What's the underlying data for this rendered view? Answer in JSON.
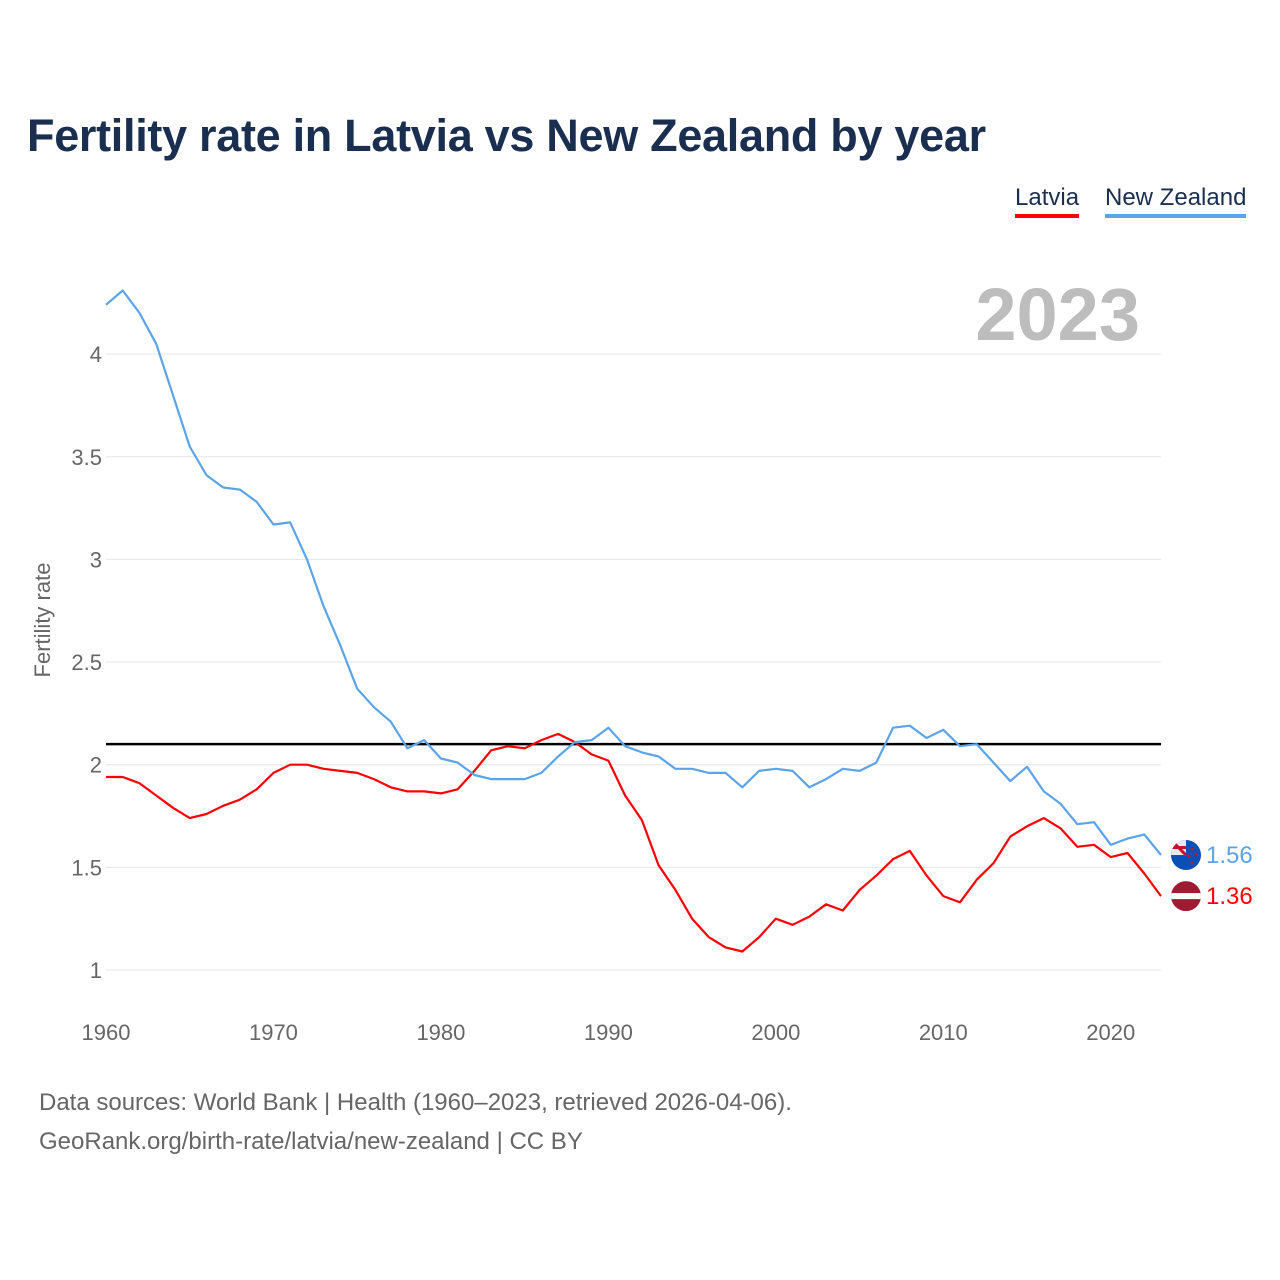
{
  "chart_data": {
    "type": "line",
    "title": "Fertility rate in Latvia vs New Zealand by year",
    "xlabel": "",
    "ylabel": "Fertility rate",
    "xlim": [
      1960,
      2023
    ],
    "ylim": [
      0.85,
      4.35
    ],
    "x_ticks": [
      "1960",
      "1970",
      "1980",
      "1990",
      "2000",
      "2010",
      "2020"
    ],
    "y_ticks": [
      "1",
      "1.5",
      "2",
      "2.5",
      "3",
      "3.5",
      "4"
    ],
    "y_tick_values": [
      1,
      1.5,
      2,
      2.5,
      3,
      3.5,
      4
    ],
    "grid": "horizontal",
    "legend_placement": "top-right",
    "year_label": "2023",
    "reference_line": 2.1,
    "x": [
      1960,
      1961,
      1962,
      1963,
      1964,
      1965,
      1966,
      1967,
      1968,
      1969,
      1970,
      1971,
      1972,
      1973,
      1974,
      1975,
      1976,
      1977,
      1978,
      1979,
      1980,
      1981,
      1982,
      1983,
      1984,
      1985,
      1986,
      1987,
      1988,
      1989,
      1990,
      1991,
      1992,
      1993,
      1994,
      1995,
      1996,
      1997,
      1998,
      1999,
      2000,
      2001,
      2002,
      2003,
      2004,
      2005,
      2006,
      2007,
      2008,
      2009,
      2010,
      2011,
      2012,
      2013,
      2014,
      2015,
      2016,
      2017,
      2018,
      2019,
      2020,
      2021,
      2022,
      2023
    ],
    "series": [
      {
        "name": "Latvia",
        "color": "#ff0000",
        "end_label": "1.36",
        "flag": "latvia-flag",
        "values": [
          1.94,
          1.94,
          1.91,
          1.85,
          1.79,
          1.74,
          1.76,
          1.8,
          1.83,
          1.88,
          1.96,
          2.0,
          2.0,
          1.98,
          1.97,
          1.96,
          1.93,
          1.89,
          1.87,
          1.87,
          1.86,
          1.88,
          1.97,
          2.07,
          2.09,
          2.08,
          2.12,
          2.15,
          2.11,
          2.05,
          2.02,
          1.85,
          1.73,
          1.51,
          1.39,
          1.25,
          1.16,
          1.11,
          1.09,
          1.16,
          1.25,
          1.22,
          1.26,
          1.32,
          1.29,
          1.39,
          1.46,
          1.54,
          1.58,
          1.46,
          1.36,
          1.33,
          1.44,
          1.52,
          1.65,
          1.7,
          1.74,
          1.69,
          1.6,
          1.61,
          1.55,
          1.57,
          1.47,
          1.36
        ]
      },
      {
        "name": "New Zealand",
        "color": "#5ba4e8",
        "end_label": "1.56",
        "flag": "new-zealand-flag",
        "values": [
          4.24,
          4.31,
          4.2,
          4.05,
          3.8,
          3.55,
          3.41,
          3.35,
          3.34,
          3.28,
          3.17,
          3.18,
          3.0,
          2.77,
          2.58,
          2.37,
          2.28,
          2.21,
          2.08,
          2.12,
          2.03,
          2.01,
          1.95,
          1.93,
          1.93,
          1.93,
          1.96,
          2.04,
          2.11,
          2.12,
          2.18,
          2.09,
          2.06,
          2.04,
          1.98,
          1.98,
          1.96,
          1.96,
          1.89,
          1.97,
          1.98,
          1.97,
          1.89,
          1.93,
          1.98,
          1.97,
          2.01,
          2.18,
          2.19,
          2.13,
          2.17,
          2.09,
          2.1,
          2.01,
          1.92,
          1.99,
          1.87,
          1.81,
          1.71,
          1.72,
          1.61,
          1.64,
          1.66,
          1.56
        ]
      }
    ]
  },
  "footer": {
    "sources": "Data sources: World Bank | Health (1960–2023, retrieved 2026-04-06).",
    "credit": "GeoRank.org/birth-rate/latvia/new-zealand | CC BY"
  }
}
